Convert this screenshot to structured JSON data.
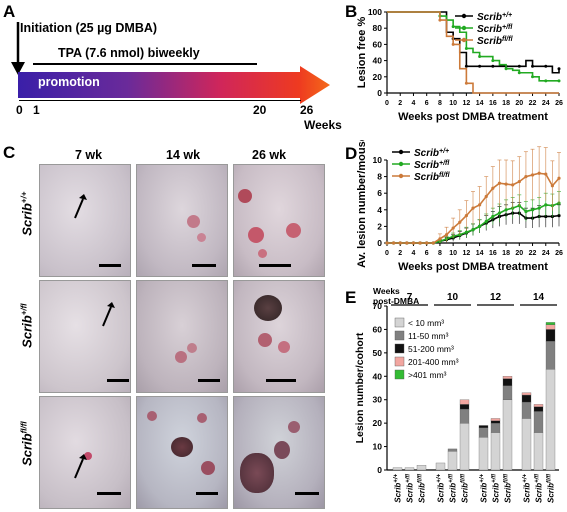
{
  "panelA": {
    "label": "A",
    "initiation": "Initiation (25 µg DMBA)",
    "tpa": "TPA (7.6 nmol) biweekly",
    "promotion": "promotion",
    "ticks": [
      "0",
      "1",
      "20",
      "26"
    ],
    "axis_unit": "Weeks"
  },
  "panelC": {
    "label": "C",
    "columns": [
      "7 wk",
      "14 wk",
      "26 wk"
    ],
    "rows": [
      "Scrib+/+",
      "Scrib+/fl",
      "Scribfl/fl"
    ]
  },
  "colors": {
    "wt": "#000000",
    "het": "#22aa22",
    "hom": "#cc7a3a"
  },
  "chart_data": [
    {
      "panel": "B",
      "type": "line",
      "ylabel": "Lesion free %",
      "xlabel": "Weeks post DMBA treatment",
      "xlim": [
        0,
        26
      ],
      "ylim": [
        0,
        100
      ],
      "xticks": [
        0,
        2,
        4,
        6,
        8,
        10,
        12,
        14,
        16,
        18,
        20,
        22,
        24,
        26
      ],
      "yticks": [
        0,
        20,
        40,
        60,
        80,
        100
      ],
      "legend_placement": "top-right",
      "series": [
        {
          "name": "Scrib+/+",
          "color": "#000000",
          "x": [
            0,
            1,
            2,
            3,
            4,
            5,
            6,
            7,
            8,
            9,
            10,
            11,
            12,
            13,
            14,
            15,
            16,
            17,
            18,
            19,
            20,
            21,
            22,
            23,
            24,
            25,
            26
          ],
          "y": [
            100,
            100,
            100,
            100,
            100,
            100,
            100,
            100,
            100,
            75,
            67,
            50,
            33,
            33,
            33,
            33,
            33,
            33,
            33,
            33,
            33,
            40,
            33,
            33,
            33,
            25,
            30
          ]
        },
        {
          "name": "Scrib+/fl",
          "color": "#22aa22",
          "x": [
            0,
            1,
            2,
            3,
            4,
            5,
            6,
            7,
            8,
            9,
            10,
            11,
            12,
            13,
            14,
            15,
            16,
            17,
            18,
            19,
            20,
            21,
            22,
            23,
            24,
            25,
            26
          ],
          "y": [
            100,
            100,
            100,
            100,
            100,
            100,
            100,
            100,
            95,
            90,
            82,
            75,
            55,
            50,
            45,
            45,
            40,
            35,
            30,
            28,
            25,
            25,
            20,
            15,
            15,
            15,
            15
          ]
        },
        {
          "name": "Scribfl/fl",
          "color": "#cc7a3a",
          "x": [
            0,
            1,
            2,
            3,
            4,
            5,
            6,
            7,
            8,
            9,
            10,
            11,
            12,
            13,
            14,
            15,
            16,
            17,
            18,
            19,
            20,
            21,
            22,
            23,
            24,
            25,
            26
          ],
          "y": [
            100,
            100,
            100,
            100,
            100,
            100,
            100,
            100,
            90,
            70,
            60,
            30,
            12,
            0,
            0,
            0,
            0,
            0,
            0,
            0,
            0,
            0,
            0,
            0,
            0,
            0,
            0
          ]
        }
      ]
    },
    {
      "panel": "D",
      "type": "line",
      "ylabel": "Av. lesion number/mouse",
      "xlabel": "Weeks post DMBA treatment",
      "xlim": [
        0,
        26
      ],
      "ylim": [
        0,
        10
      ],
      "xticks": [
        0,
        2,
        4,
        6,
        8,
        10,
        12,
        14,
        16,
        18,
        20,
        22,
        24,
        26
      ],
      "yticks": [
        0,
        2,
        4,
        6,
        8,
        10
      ],
      "legend_placement": "top-left",
      "series": [
        {
          "name": "Scrib+/+",
          "color": "#000000",
          "x": [
            0,
            1,
            2,
            3,
            4,
            5,
            6,
            7,
            8,
            9,
            10,
            11,
            12,
            13,
            14,
            15,
            16,
            17,
            18,
            19,
            20,
            21,
            22,
            23,
            24,
            25,
            26
          ],
          "y": [
            0,
            0,
            0,
            0,
            0,
            0,
            0,
            0,
            0.2,
            0.4,
            0.6,
            0.9,
            1.2,
            1.6,
            2.0,
            2.4,
            2.8,
            3.2,
            3.4,
            3.6,
            3.6,
            3.0,
            3.0,
            3.2,
            3.2,
            3.2,
            3.3
          ],
          "err": [
            0,
            0,
            0,
            0,
            0,
            0,
            0,
            0,
            0.2,
            0.3,
            0.4,
            0.5,
            0.6,
            0.7,
            0.8,
            0.9,
            1.0,
            1.2,
            1.2,
            1.3,
            1.3,
            1.2,
            1.2,
            1.3,
            1.3,
            1.3,
            1.3
          ]
        },
        {
          "name": "Scrib+/fl",
          "color": "#22aa22",
          "x": [
            0,
            1,
            2,
            3,
            4,
            5,
            6,
            7,
            8,
            9,
            10,
            11,
            12,
            13,
            14,
            15,
            16,
            17,
            18,
            19,
            20,
            21,
            22,
            23,
            24,
            25,
            26
          ],
          "y": [
            0,
            0,
            0,
            0,
            0,
            0,
            0,
            0,
            0.2,
            0.5,
            0.8,
            1.0,
            1.3,
            1.6,
            2.0,
            2.6,
            3.2,
            3.6,
            4.0,
            4.2,
            4.5,
            3.8,
            4.0,
            4.2,
            4.6,
            4.5,
            4.8
          ],
          "err": [
            0,
            0,
            0,
            0,
            0,
            0,
            0,
            0,
            0.2,
            0.3,
            0.4,
            0.5,
            0.6,
            0.7,
            0.8,
            0.9,
            1.0,
            1.1,
            1.2,
            1.3,
            1.3,
            1.2,
            1.2,
            1.3,
            1.4,
            1.4,
            1.4
          ]
        },
        {
          "name": "Scribfl/fl",
          "color": "#cc7a3a",
          "x": [
            0,
            1,
            2,
            3,
            4,
            5,
            6,
            7,
            8,
            9,
            10,
            11,
            12,
            13,
            14,
            15,
            16,
            17,
            18,
            19,
            20,
            21,
            22,
            23,
            24,
            25,
            26
          ],
          "y": [
            0,
            0,
            0,
            0,
            0,
            0,
            0,
            0,
            0.5,
            1.0,
            1.8,
            2.5,
            3.3,
            4.2,
            4.6,
            5.6,
            6.6,
            7.2,
            7.1,
            7.0,
            7.4,
            8.0,
            8.2,
            8.4,
            8.3,
            6.9,
            7.8
          ],
          "err": [
            0,
            0,
            0,
            0,
            0,
            0,
            0,
            0,
            0.6,
            0.9,
            1.2,
            1.5,
            1.8,
            2.0,
            2.2,
            2.4,
            2.6,
            2.8,
            2.9,
            2.9,
            3.0,
            3.0,
            3.1,
            3.2,
            3.2,
            3.0,
            3.1
          ]
        }
      ]
    },
    {
      "panel": "E",
      "type": "bar",
      "ylabel": "Lesion number/cohort",
      "ylim": [
        0,
        70
      ],
      "yticks": [
        0,
        10,
        20,
        30,
        40,
        50,
        60,
        70
      ],
      "week_header": "Weeks post-DMBA",
      "weeks": [
        "7",
        "10",
        "12",
        "14"
      ],
      "genotypes": [
        "Scrib+/+",
        "Scrib+/fl",
        "Scribfl/fl"
      ],
      "legend": [
        {
          "name": "< 10 mm³",
          "color": "#d4d4d4"
        },
        {
          "name": "11-50 mm³",
          "color": "#808080"
        },
        {
          "name": "51-200 mm³",
          "color": "#111111"
        },
        {
          "name": "201-400 mm³",
          "color": "#f2a6a0"
        },
        {
          "name": ">401 mm³",
          "color": "#33bb33"
        }
      ],
      "groups": [
        {
          "week": "7",
          "bars": [
            [
              1,
              0,
              0,
              0,
              0
            ],
            [
              1,
              0,
              0,
              0,
              0
            ],
            [
              2,
              0,
              0,
              0,
              0
            ]
          ]
        },
        {
          "week": "10",
          "bars": [
            [
              3,
              0,
              0,
              0,
              0
            ],
            [
              8,
              1,
              0,
              0,
              0
            ],
            [
              20,
              6,
              2,
              2,
              0
            ]
          ]
        },
        {
          "week": "12",
          "bars": [
            [
              14,
              4,
              1,
              0,
              0
            ],
            [
              16,
              4,
              1,
              1,
              0
            ],
            [
              30,
              6,
              3,
              1,
              0
            ]
          ]
        },
        {
          "week": "14",
          "bars": [
            [
              22,
              7,
              3,
              1,
              0
            ],
            [
              16,
              9,
              2,
              1,
              0
            ],
            [
              43,
              12,
              5,
              2,
              1
            ]
          ]
        }
      ]
    }
  ]
}
